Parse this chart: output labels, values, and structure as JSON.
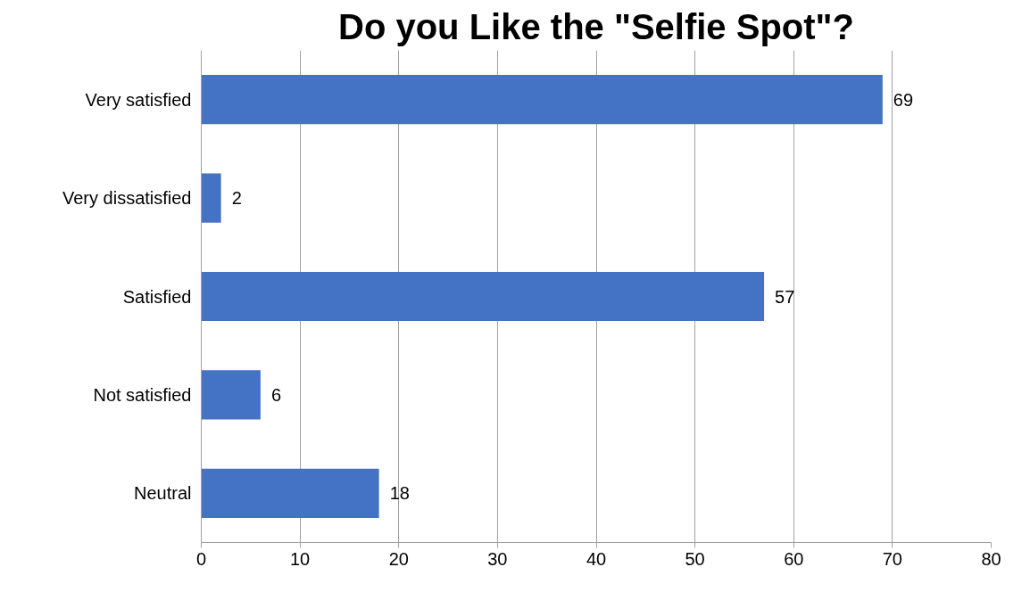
{
  "chart_data": {
    "type": "bar",
    "orientation": "horizontal",
    "title": "Do you Like the \"Selfie Spot\"?",
    "categories": [
      "Very satisfied",
      "Very dissatisfied",
      "Satisfied",
      "Not satisfied",
      "Neutral"
    ],
    "values": [
      69,
      2,
      57,
      6,
      18
    ],
    "color": "#4472c4",
    "xlim": [
      0,
      80
    ],
    "xticks": [
      0,
      10,
      20,
      30,
      40,
      50,
      60,
      70,
      80
    ],
    "grid": "x",
    "data_labels": true
  }
}
